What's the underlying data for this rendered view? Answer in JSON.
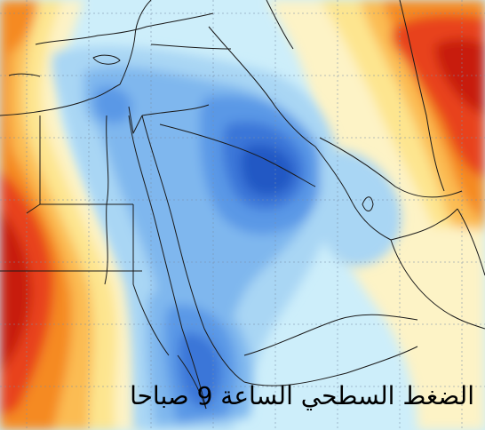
{
  "caption": "الضغط السطحي الساعة 9 صباحا",
  "palette": {
    "deep_red": "#c81e10",
    "red": "#e8431c",
    "orange": "#f58a23",
    "light_orange": "#fbbc53",
    "yellow": "#fde58f",
    "cream": "#fdf3c6",
    "pale_cyan": "#cdeefa",
    "light_blue": "#a9d6f4",
    "mid_blue": "#7fb7ee",
    "blue": "#5a98e6",
    "dark_blue": "#3a76d8",
    "darkest_blue": "#2459c4",
    "grid_line": "#7a8fa8",
    "border_line": "#1a1a1a"
  }
}
